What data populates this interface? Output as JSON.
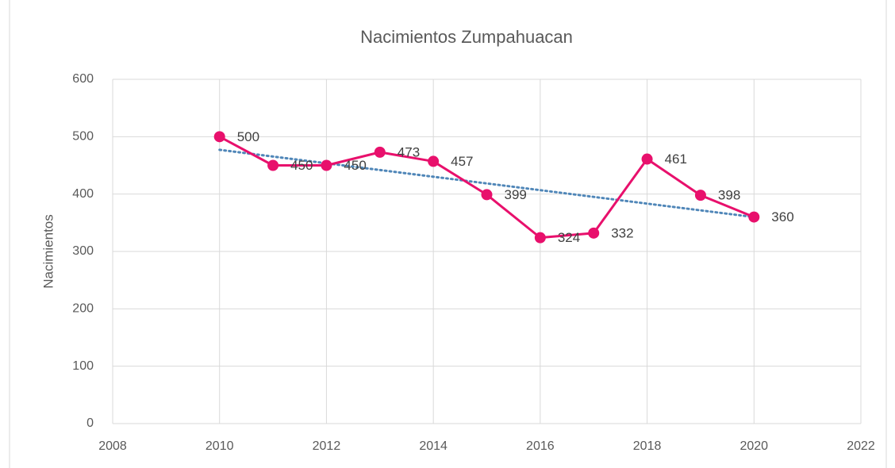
{
  "chart_data": {
    "type": "line",
    "title": "Nacimientos Zumpahuacan",
    "y_label": "Nacimientos",
    "x": [
      2010,
      2011,
      2012,
      2013,
      2014,
      2015,
      2016,
      2017,
      2018,
      2019,
      2020
    ],
    "series": [
      {
        "color": "#e8106c",
        "values": [
          500,
          450,
          450,
          473,
          457,
          399,
          324,
          332,
          461,
          398,
          360
        ]
      }
    ],
    "xlim": [
      2008,
      2022
    ],
    "xticks": [
      2008,
      2010,
      2012,
      2014,
      2016,
      2018,
      2020,
      2022
    ],
    "ylim": [
      0,
      600
    ],
    "yticks": [
      0,
      100,
      200,
      300,
      400,
      500,
      600
    ],
    "grid": true,
    "data_labels": true,
    "trendline": {
      "type": "linear",
      "color": "#4f86b8"
    }
  }
}
